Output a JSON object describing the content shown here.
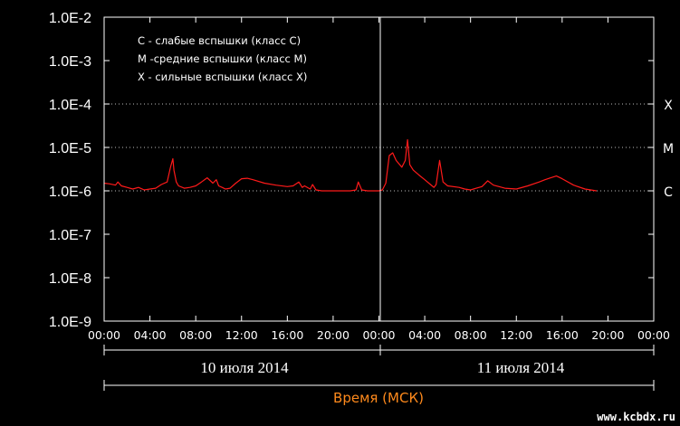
{
  "chart_data": {
    "type": "line",
    "y_scale": "log",
    "ylim": [
      "1.0E-9",
      "1.0E-2"
    ],
    "y_ticks": [
      "1.0E-2",
      "1.0E-3",
      "1.0E-4",
      "1.0E-5",
      "1.0E-6",
      "1.0E-7",
      "1.0E-8",
      "1.0E-9"
    ],
    "x_ticks": [
      "00:00",
      "04:00",
      "08:00",
      "12:00",
      "16:00",
      "20:00",
      "00:00",
      "04:00",
      "08:00",
      "12:00",
      "16:00",
      "20:00",
      "00:00"
    ],
    "x_range_hours": [
      0,
      48
    ],
    "flare_classes": [
      {
        "label": "X",
        "value": 0.0001
      },
      {
        "label": "M",
        "value": 1e-05
      },
      {
        "label": "C",
        "value": 1e-06
      }
    ],
    "legend": [
      "С - слабые вспышки (класс С)",
      "М -средние вспышки (класс М)",
      "Х - сильные вспышки (класс Х)"
    ],
    "days": [
      "10 июля 2014",
      "11 июля 2014"
    ],
    "xlabel": "Время (МСК)",
    "series_color": "#ff1a1a",
    "series": [
      {
        "x": [
          0,
          0.5,
          1,
          1.2,
          1.5,
          2,
          2.5,
          3,
          3.5,
          4,
          4.5,
          5,
          5.5,
          5.8,
          6,
          6.1,
          6.3,
          6.5,
          7,
          7.5,
          8,
          8.5,
          9,
          9.5,
          9.8,
          10,
          10.3,
          10.6,
          11,
          11.5,
          12,
          12.5,
          13,
          14,
          15,
          16,
          16.5,
          17,
          17.3,
          17.5,
          18,
          18.2,
          18.5,
          19,
          20,
          21,
          21.5,
          22,
          22.2,
          22.5,
          23,
          23.5,
          24,
          24.3,
          24.6,
          24.9,
          25.2,
          25.5,
          26,
          26.3,
          26.5,
          26.7,
          27,
          27.5,
          28,
          28.5,
          28.8,
          29,
          29.3,
          29.6,
          30,
          31,
          31.5,
          32,
          32.5,
          33,
          33.5,
          34,
          35,
          36,
          37,
          38,
          38.5,
          39,
          39.5,
          40,
          41,
          42,
          43
        ],
        "y": [
          1.5e-06,
          1.45e-06,
          1.35e-06,
          1.6e-06,
          1.3e-06,
          1.2e-06,
          1.1e-06,
          1.2e-06,
          1.05e-06,
          1.1e-06,
          1.15e-06,
          1.4e-06,
          1.6e-06,
          3.5e-06,
          5.5e-06,
          3e-06,
          1.6e-06,
          1.3e-06,
          1.15e-06,
          1.2e-06,
          1.3e-06,
          1.6e-06,
          2e-06,
          1.5e-06,
          1.8e-06,
          1.3e-06,
          1.2e-06,
          1.1e-06,
          1.15e-06,
          1.5e-06,
          1.9e-06,
          1.95e-06,
          1.8e-06,
          1.5e-06,
          1.35e-06,
          1.25e-06,
          1.3e-06,
          1.6e-06,
          1.2e-06,
          1.3e-06,
          1.1e-06,
          1.4e-06,
          1.05e-06,
          1e-06,
          1e-06,
          1e-06,
          1e-06,
          1.05e-06,
          1.6e-06,
          1.05e-06,
          1e-06,
          1e-06,
          1e-06,
          1.05e-06,
          1.5e-06,
          6.5e-06,
          7.5e-06,
          5e-06,
          3.5e-06,
          5e-06,
          1.5e-05,
          4e-06,
          3e-06,
          2.3e-06,
          1.8e-06,
          1.4e-06,
          1.2e-06,
          1.4e-06,
          5e-06,
          1.6e-06,
          1.3e-06,
          1.2e-06,
          1.1e-06,
          1.05e-06,
          1.15e-06,
          1.25e-06,
          1.7e-06,
          1.35e-06,
          1.15e-06,
          1.1e-06,
          1.3e-06,
          1.6e-06,
          1.8e-06,
          2e-06,
          2.2e-06,
          1.9e-06,
          1.35e-06,
          1.1e-06,
          1e-06
        ]
      }
    ]
  },
  "watermark": "www.kcbdx.ru"
}
